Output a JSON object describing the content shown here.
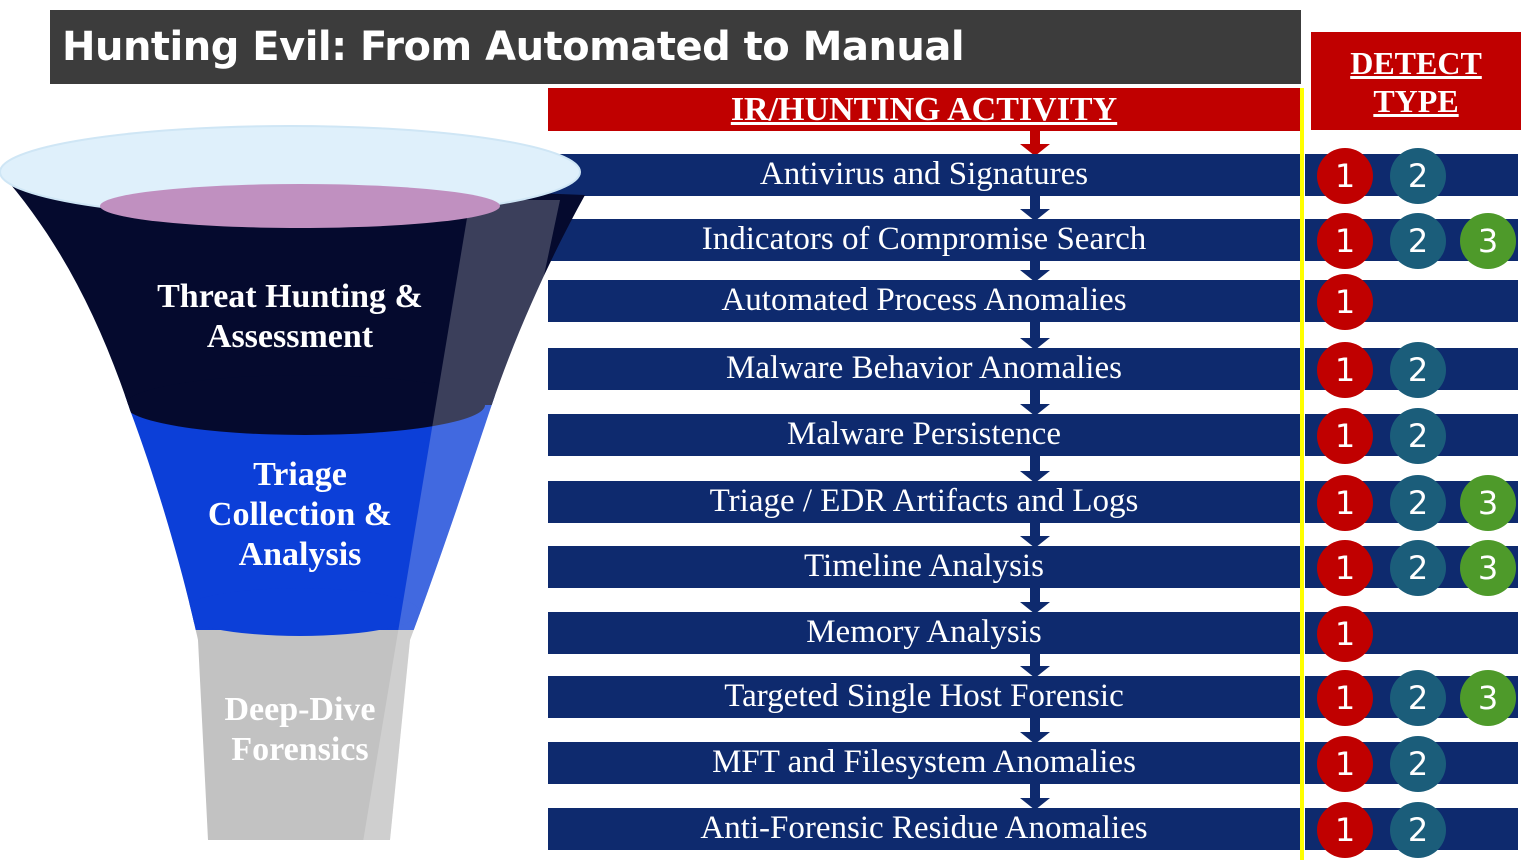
{
  "title": "Hunting Evil: From Automated to Manual",
  "activity_header": "IR/HUNTING ACTIVITY",
  "detect_header": [
    "DETECT",
    "TYPE"
  ],
  "funnel": {
    "stages": [
      {
        "label": [
          "Threat Hunting &",
          "Assessment"
        ],
        "color": "#050a2e"
      },
      {
        "label": [
          "Triage",
          "Collection &",
          "Analysis"
        ],
        "color": "#0c3fd8"
      },
      {
        "label": [
          "Deep-Dive",
          "Forensics"
        ],
        "color": "#c2c2c2"
      }
    ],
    "rim_color": "#dff0fb",
    "inner_color": "#c090c0"
  },
  "colors": {
    "activity_bar": "#0e2a6e",
    "header_red": "#c00000",
    "divider": "#ffff00",
    "type_1": "#c00000",
    "type_2": "#1b5d7a",
    "type_3": "#4e9a2a"
  },
  "activities": [
    {
      "label": "Antivirus and Signatures",
      "types": [
        "1",
        "2"
      ]
    },
    {
      "label": "Indicators of Compromise Search",
      "types": [
        "1",
        "2",
        "3"
      ]
    },
    {
      "label": "Automated Process Anomalies",
      "types": [
        "1"
      ]
    },
    {
      "label": "Malware Behavior Anomalies",
      "types": [
        "1",
        "2"
      ]
    },
    {
      "label": "Malware Persistence",
      "types": [
        "1",
        "2"
      ]
    },
    {
      "label": "Triage / EDR Artifacts and Logs",
      "types": [
        "1",
        "2",
        "3"
      ]
    },
    {
      "label": "Timeline Analysis",
      "types": [
        "1",
        "2",
        "3"
      ]
    },
    {
      "label": "Memory Analysis",
      "types": [
        "1"
      ]
    },
    {
      "label": "Targeted Single Host Forensic",
      "types": [
        "1",
        "2",
        "3"
      ]
    },
    {
      "label": "MFT and Filesystem Anomalies",
      "types": [
        "1",
        "2"
      ]
    },
    {
      "label": "Anti-Forensic Residue Anomalies",
      "types": [
        "1",
        "2"
      ]
    }
  ]
}
